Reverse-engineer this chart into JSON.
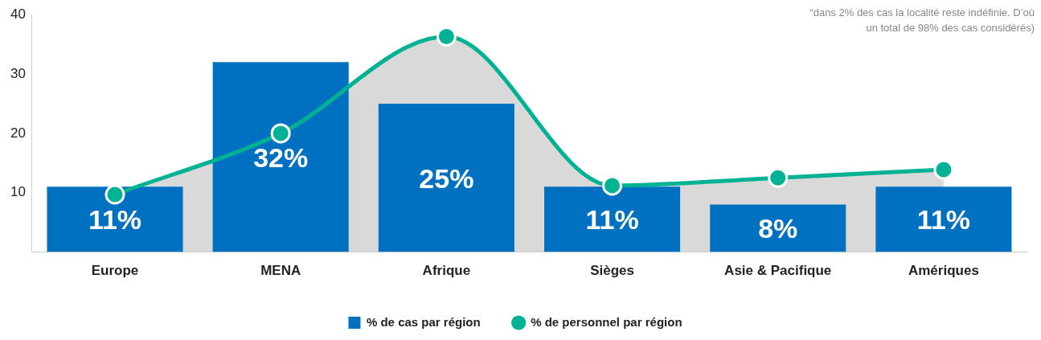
{
  "chart_data": {
    "type": "bar",
    "categories": [
      "Europe",
      "MENA",
      "Afrique",
      "Sièges",
      "Asie & Pacifique",
      "Amériques"
    ],
    "series": [
      {
        "name": "% de cas par région",
        "color": "#0070c0",
        "values": [
          11,
          32,
          25,
          11,
          8,
          11
        ],
        "value_labels": [
          "11%",
          "32%",
          "25%",
          "11%",
          "8%",
          "11%"
        ]
      },
      {
        "name": "% de personnel par région",
        "type": "area",
        "color": "#00b294",
        "values": [
          9.7,
          20,
          36.3,
          11.2,
          12.5,
          13.9
        ]
      }
    ],
    "ylim": [
      0,
      40
    ],
    "yticks": [
      10,
      20,
      30,
      40
    ],
    "grid": false,
    "legend": "bottom",
    "marker": "circle",
    "annotations": [
      "“dans 2% des cas la localité reste indéfinie. D’où un total de 98% des cas considérés)"
    ]
  }
}
